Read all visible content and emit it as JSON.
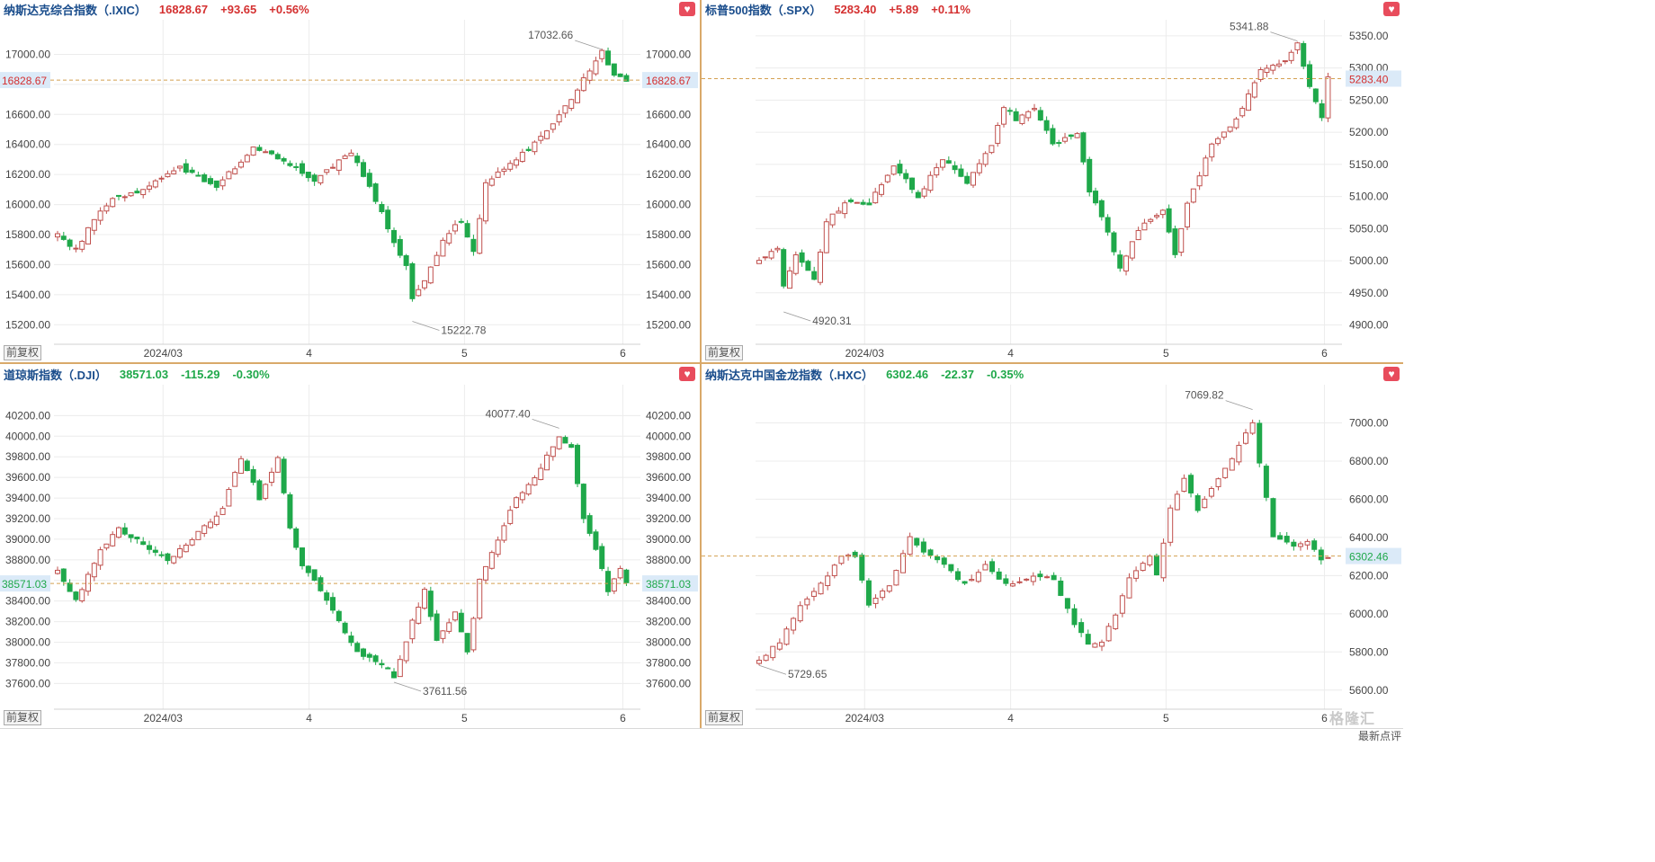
{
  "charts_common": {
    "x_ticks": [
      "2024/03",
      "4",
      "5",
      "6"
    ],
    "adj_label": "前复权"
  },
  "brand": "格隆汇",
  "brand_sub": "最新点评",
  "chart_data": [
    {
      "type": "candlestick",
      "title": "纳斯达克综合指数（.IXIC）",
      "last": "16828.67",
      "change": "+93.65",
      "change_pct": "+0.56%",
      "direction": "up",
      "x_labels": [
        "2024/03",
        "4",
        "5",
        "6"
      ],
      "y_ticks": [
        "17000.00",
        "16800.00",
        "16600.00",
        "16400.00",
        "16200.00",
        "16000.00",
        "15800.00",
        "15600.00",
        "15400.00",
        "15200.00"
      ],
      "y_range": [
        15070,
        17230
      ],
      "high_label": "17032.66",
      "low_label": "15222.78",
      "price_line": "16828.67",
      "key_points": [
        [
          0,
          15800
        ],
        [
          3,
          15700
        ],
        [
          6,
          15900
        ],
        [
          9,
          16040
        ],
        [
          14,
          16100
        ],
        [
          20,
          16250
        ],
        [
          26,
          16120
        ],
        [
          32,
          16380
        ],
        [
          37,
          16300
        ],
        [
          42,
          16160
        ],
        [
          48,
          16350
        ],
        [
          53,
          15950
        ],
        [
          55,
          15750
        ],
        [
          57,
          15600
        ],
        [
          58,
          15380
        ],
        [
          60,
          15500
        ],
        [
          63,
          15760
        ],
        [
          66,
          15900
        ],
        [
          68,
          15680
        ],
        [
          70,
          16150
        ],
        [
          75,
          16300
        ],
        [
          80,
          16480
        ],
        [
          84,
          16700
        ],
        [
          87,
          16900
        ],
        [
          89,
          17030
        ],
        [
          91,
          16850
        ],
        [
          93,
          16828.67
        ]
      ]
    },
    {
      "type": "candlestick",
      "title": "标普500指数（.SPX）",
      "last": "5283.40",
      "change": "+5.89",
      "change_pct": "+0.11%",
      "direction": "up",
      "x_labels": [
        "2024/03",
        "4",
        "5",
        "6"
      ],
      "y_ticks": [
        "5350.00",
        "5300.00",
        "5250.00",
        "5200.00",
        "5150.00",
        "5100.00",
        "5050.00",
        "5000.00",
        "4950.00",
        "4900.00"
      ],
      "y_range": [
        4870,
        5375
      ],
      "high_label": "5341.88",
      "low_label": "4920.31",
      "price_line": "5283.40",
      "key_points": [
        [
          0,
          5000
        ],
        [
          3,
          5020
        ],
        [
          4,
          4960
        ],
        [
          6,
          5010
        ],
        [
          9,
          4970
        ],
        [
          11,
          5060
        ],
        [
          14,
          5090
        ],
        [
          18,
          5090
        ],
        [
          22,
          5150
        ],
        [
          26,
          5100
        ],
        [
          30,
          5160
        ],
        [
          34,
          5120
        ],
        [
          38,
          5180
        ],
        [
          40,
          5240
        ],
        [
          42,
          5220
        ],
        [
          45,
          5240
        ],
        [
          48,
          5180
        ],
        [
          52,
          5200
        ],
        [
          54,
          5110
        ],
        [
          56,
          5070
        ],
        [
          59,
          4990
        ],
        [
          62,
          5050
        ],
        [
          66,
          5080
        ],
        [
          68,
          5010
        ],
        [
          70,
          5090
        ],
        [
          74,
          5180
        ],
        [
          78,
          5220
        ],
        [
          82,
          5300
        ],
        [
          86,
          5310
        ],
        [
          88,
          5340
        ],
        [
          90,
          5270
        ],
        [
          92,
          5220
        ],
        [
          93,
          5283.4
        ]
      ]
    },
    {
      "type": "candlestick",
      "title": "道琼斯指数（.DJI）",
      "last": "38571.03",
      "change": "-115.29",
      "change_pct": "-0.30%",
      "direction": "down",
      "x_labels": [
        "2024/03",
        "4",
        "5",
        "6"
      ],
      "y_ticks": [
        "40200.00",
        "40000.00",
        "39800.00",
        "39600.00",
        "39400.00",
        "39200.00",
        "39000.00",
        "38800.00",
        "38600.00",
        "38400.00",
        "38200.00",
        "38000.00",
        "37800.00",
        "37600.00"
      ],
      "y_range": [
        37350,
        40500
      ],
      "high_label": "40077.40",
      "low_label": "37611.56",
      "price_line": "38571.03",
      "key_points": [
        [
          0,
          38700
        ],
        [
          3,
          38400
        ],
        [
          5,
          38650
        ],
        [
          7,
          38900
        ],
        [
          10,
          39100
        ],
        [
          14,
          38950
        ],
        [
          18,
          38800
        ],
        [
          22,
          39000
        ],
        [
          27,
          39300
        ],
        [
          30,
          39800
        ],
        [
          33,
          39400
        ],
        [
          36,
          39800
        ],
        [
          38,
          39100
        ],
        [
          40,
          38750
        ],
        [
          43,
          38500
        ],
        [
          46,
          38200
        ],
        [
          49,
          37900
        ],
        [
          53,
          37800
        ],
        [
          55,
          37650
        ],
        [
          58,
          38200
        ],
        [
          60,
          38500
        ],
        [
          62,
          38000
        ],
        [
          65,
          38300
        ],
        [
          67,
          37900
        ],
        [
          69,
          38600
        ],
        [
          72,
          39000
        ],
        [
          75,
          39400
        ],
        [
          78,
          39600
        ],
        [
          82,
          40000
        ],
        [
          84,
          39900
        ],
        [
          86,
          39200
        ],
        [
          88,
          38900
        ],
        [
          90,
          38500
        ],
        [
          92,
          38700
        ],
        [
          93,
          38571.03
        ]
      ]
    },
    {
      "type": "candlestick",
      "title": "纳斯达克中国金龙指数（.HXC）",
      "last": "6302.46",
      "change": "-22.37",
      "change_pct": "-0.35%",
      "direction": "down",
      "x_labels": [
        "2024/03",
        "4",
        "5",
        "6"
      ],
      "y_ticks": [
        "7000.00",
        "6800.00",
        "6600.00",
        "6400.00",
        "6200.00",
        "6000.00",
        "5800.00",
        "5600.00"
      ],
      "y_range": [
        5500,
        7200
      ],
      "high_label": "7069.82",
      "low_label": "5729.65",
      "price_line": "6302.46",
      "key_points": [
        [
          0,
          5760
        ],
        [
          3,
          5850
        ],
        [
          6,
          6050
        ],
        [
          9,
          6150
        ],
        [
          12,
          6300
        ],
        [
          14,
          6300
        ],
        [
          16,
          6050
        ],
        [
          19,
          6150
        ],
        [
          22,
          6400
        ],
        [
          24,
          6320
        ],
        [
          27,
          6250
        ],
        [
          30,
          6150
        ],
        [
          33,
          6260
        ],
        [
          36,
          6150
        ],
        [
          40,
          6200
        ],
        [
          43,
          6180
        ],
        [
          46,
          5950
        ],
        [
          48,
          5850
        ],
        [
          50,
          5850
        ],
        [
          52,
          6000
        ],
        [
          54,
          6180
        ],
        [
          57,
          6300
        ],
        [
          58,
          6200
        ],
        [
          60,
          6550
        ],
        [
          62,
          6700
        ],
        [
          64,
          6550
        ],
        [
          67,
          6700
        ],
        [
          69,
          6820
        ],
        [
          72,
          7000
        ],
        [
          73,
          6800
        ],
        [
          75,
          6400
        ],
        [
          78,
          6360
        ],
        [
          80,
          6380
        ],
        [
          82,
          6280
        ],
        [
          83,
          6302.46
        ]
      ]
    }
  ]
}
